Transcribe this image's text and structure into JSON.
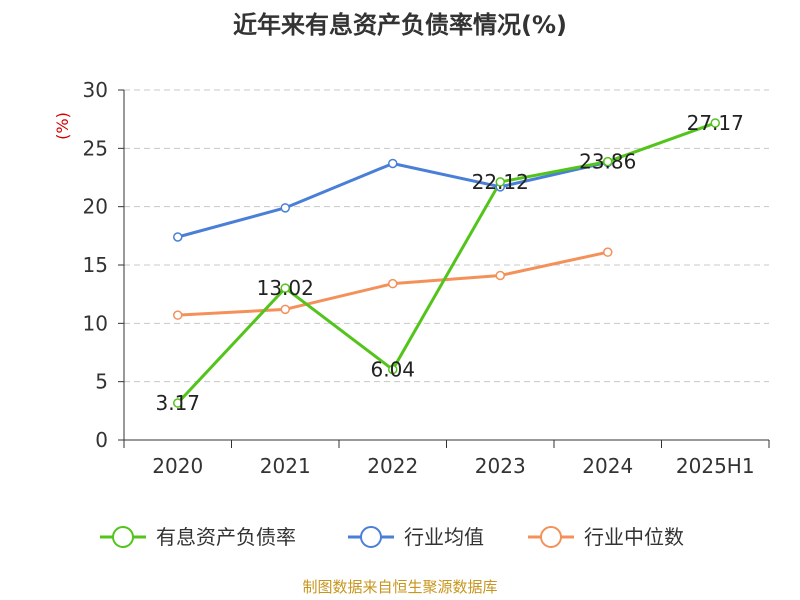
{
  "chart_data": {
    "type": "line",
    "title": "近年来有息资产负债率情况(%)",
    "ylabel": "(%)",
    "xlabel": "",
    "categories": [
      "2020",
      "2021",
      "2022",
      "2023",
      "2024",
      "2025H1"
    ],
    "yticks": [
      "0",
      "5",
      "10",
      "15",
      "20",
      "25",
      "30"
    ],
    "ylim": [
      0,
      30
    ],
    "grid": "horizontal dashed",
    "legend_position": "bottom",
    "series": [
      {
        "name": "有息资产负债率",
        "color": "#52c41a",
        "values": [
          3.17,
          13.02,
          6.04,
          22.12,
          23.86,
          27.17
        ],
        "labels": [
          "3.17",
          "13.02",
          "6.04",
          "22.12",
          "23.86",
          "27.17"
        ]
      },
      {
        "name": "行业均值",
        "color": "#4a7fd8",
        "values": [
          17.4,
          19.9,
          23.7,
          21.7,
          23.8,
          null
        ]
      },
      {
        "name": "行业中位数",
        "color": "#f4915a",
        "values": [
          10.7,
          11.2,
          13.4,
          14.1,
          16.1,
          null
        ]
      }
    ]
  },
  "source_text": "制图数据来自恒生聚源数据库"
}
